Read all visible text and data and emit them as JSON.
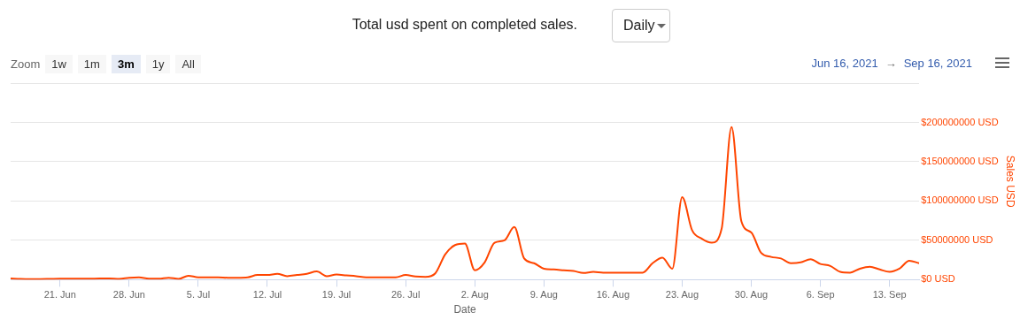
{
  "chart_data": {
    "type": "line",
    "title": "Total usd spent on completed sales.",
    "xlabel": "Date",
    "ylabel": "Sales USD",
    "annotations": [
      "Daily",
      "Zoom",
      "1w",
      "1m",
      "3m",
      "1y",
      "All",
      "Jun 16, 2021",
      "→",
      "Sep 16, 2021"
    ],
    "x": [
      "2021-06-16",
      "2021-06-17",
      "2021-06-18",
      "2021-06-19",
      "2021-06-20",
      "2021-06-21",
      "2021-06-22",
      "2021-06-23",
      "2021-06-24",
      "2021-06-25",
      "2021-06-26",
      "2021-06-27",
      "2021-06-28",
      "2021-06-29",
      "2021-06-30",
      "2021-07-01",
      "2021-07-02",
      "2021-07-03",
      "2021-07-04",
      "2021-07-05",
      "2021-07-06",
      "2021-07-07",
      "2021-07-08",
      "2021-07-09",
      "2021-07-10",
      "2021-07-11",
      "2021-07-12",
      "2021-07-13",
      "2021-07-14",
      "2021-07-15",
      "2021-07-16",
      "2021-07-17",
      "2021-07-18",
      "2021-07-19",
      "2021-07-20",
      "2021-07-21",
      "2021-07-22",
      "2021-07-23",
      "2021-07-24",
      "2021-07-25",
      "2021-07-26",
      "2021-07-27",
      "2021-07-28",
      "2021-07-29",
      "2021-07-30",
      "2021-07-31",
      "2021-08-01",
      "2021-08-02",
      "2021-08-03",
      "2021-08-04",
      "2021-08-05",
      "2021-08-06",
      "2021-08-07",
      "2021-08-08",
      "2021-08-09",
      "2021-08-10",
      "2021-08-11",
      "2021-08-12",
      "2021-08-13",
      "2021-08-14",
      "2021-08-15",
      "2021-08-16",
      "2021-08-17",
      "2021-08-18",
      "2021-08-19",
      "2021-08-20",
      "2021-08-21",
      "2021-08-22",
      "2021-08-23",
      "2021-08-24",
      "2021-08-25",
      "2021-08-26",
      "2021-08-27",
      "2021-08-28",
      "2021-08-29",
      "2021-08-30",
      "2021-08-31",
      "2021-09-01",
      "2021-09-02",
      "2021-09-03",
      "2021-09-04",
      "2021-09-05",
      "2021-09-06",
      "2021-09-07",
      "2021-09-08",
      "2021-09-09",
      "2021-09-10",
      "2021-09-11",
      "2021-09-12",
      "2021-09-13",
      "2021-09-14",
      "2021-09-15",
      "2021-09-16"
    ],
    "series": [
      {
        "color": "#ff4500",
        "values": [
          1500000,
          1000000,
          800000,
          800000,
          1000000,
          1200000,
          1200000,
          1200000,
          1200000,
          1500000,
          1500000,
          1000000,
          2500000,
          3000000,
          1200000,
          1200000,
          2500000,
          1000000,
          5000000,
          3000000,
          3000000,
          3000000,
          2500000,
          2500000,
          3000000,
          6000000,
          6000000,
          7500000,
          4500000,
          6000000,
          7500000,
          10500000,
          4500000,
          6500000,
          5500000,
          4500000,
          3000000,
          3000000,
          3000000,
          3000000,
          6000000,
          4000000,
          3500000,
          8000000,
          32000000,
          44000000,
          46000000,
          12000000,
          22000000,
          47000000,
          50000000,
          67000000,
          27000000,
          21000000,
          14000000,
          13000000,
          12000000,
          11000000,
          8500000,
          10000000,
          9000000,
          9000000,
          9000000,
          9000000,
          9000000,
          21000000,
          28000000,
          14000000,
          105000000,
          63000000,
          52000000,
          47000000,
          65000000,
          194000000,
          74000000,
          60000000,
          34000000,
          29000000,
          27000000,
          21000000,
          22000000,
          26000000,
          20000000,
          17500000,
          10000000,
          9000000,
          14000000,
          16500000,
          13000000,
          10000000,
          14000000,
          24000000,
          21000000
        ]
      }
    ],
    "xlim": [
      "2021-06-16",
      "2021-09-16"
    ],
    "xticks": [
      {
        "value": "2021-06-21",
        "label": "21. Jun"
      },
      {
        "value": "2021-06-28",
        "label": "28. Jun"
      },
      {
        "value": "2021-07-05",
        "label": "5. Jul"
      },
      {
        "value": "2021-07-12",
        "label": "12. Jul"
      },
      {
        "value": "2021-07-19",
        "label": "19. Jul"
      },
      {
        "value": "2021-07-26",
        "label": "26. Jul"
      },
      {
        "value": "2021-08-02",
        "label": "2. Aug"
      },
      {
        "value": "2021-08-09",
        "label": "9. Aug"
      },
      {
        "value": "2021-08-16",
        "label": "16. Aug"
      },
      {
        "value": "2021-08-23",
        "label": "23. Aug"
      },
      {
        "value": "2021-08-30",
        "label": "30. Aug"
      },
      {
        "value": "2021-09-06",
        "label": "6. Sep"
      },
      {
        "value": "2021-09-13",
        "label": "13. Sep"
      }
    ],
    "ylim": [
      0,
      250000000
    ],
    "yticks": [
      {
        "value": 0,
        "label": "$0 USD"
      },
      {
        "value": 50000000,
        "label": "$50000000 USD"
      },
      {
        "value": 100000000,
        "label": "$100000000 USD"
      },
      {
        "value": 150000000,
        "label": "$150000000 USD"
      },
      {
        "value": 200000000,
        "label": "$200000000 USD"
      },
      {
        "value": 250000000,
        "label": null
      }
    ],
    "grid": "y",
    "legend": false,
    "marker": "none",
    "line_style": "solid"
  }
}
